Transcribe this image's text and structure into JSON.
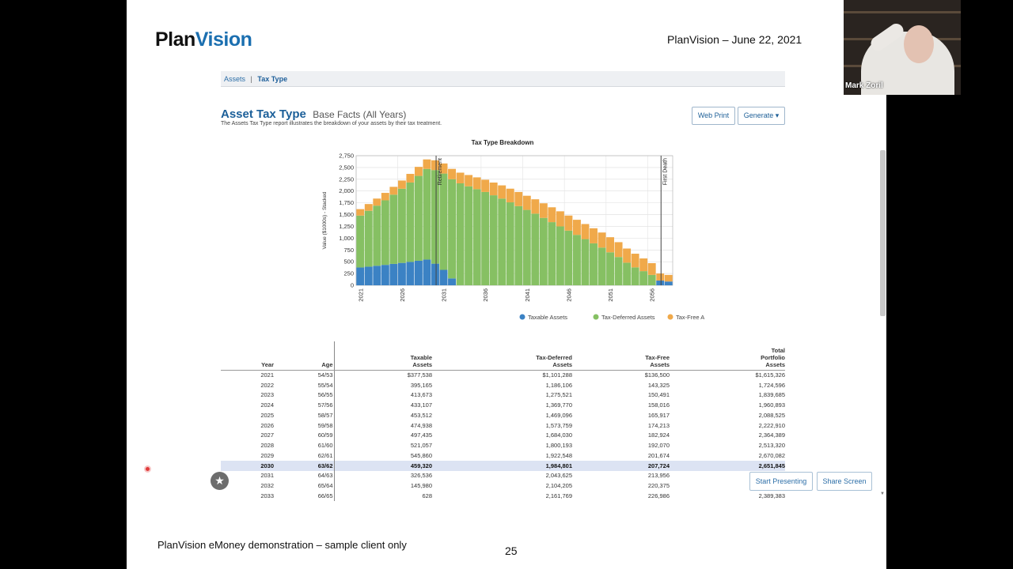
{
  "slide": {
    "logo_plan": "Plan",
    "logo_vision": "Vision",
    "header_date": "PlanVision – June 22, 2021",
    "footer_note": "PlanVision eMoney demonstration – sample client only",
    "page_number": "25"
  },
  "breadcrumb": {
    "item1": "Assets",
    "separator": "|",
    "item2": "Tax Type"
  },
  "report": {
    "title": "Asset Tax Type",
    "subtitle": "Base Facts (All Years)",
    "description": "The Assets Tax Type report illustrates the breakdown of your assets by their tax treatment.",
    "web_print_label": "Web Print",
    "generate_label": "Generate ▾"
  },
  "chart_data": {
    "type": "bar",
    "stacked": true,
    "title": "Tax Type Breakdown",
    "ylabel": "Value ($1000s) - Stacked",
    "xlabel": "",
    "ylim": [
      0,
      2750
    ],
    "yticks": [
      0,
      250,
      500,
      750,
      1000,
      1250,
      1500,
      1750,
      2000,
      2250,
      2500,
      2750
    ],
    "yticklabels": [
      "0",
      "250",
      "500",
      "750",
      "1,000",
      "1,250",
      "1,500",
      "1,750",
      "2,000",
      "2,250",
      "2,500",
      "2,750"
    ],
    "xticklabels": [
      "2021",
      "2026",
      "2031",
      "2036",
      "2041",
      "2046",
      "2051",
      "2056"
    ],
    "grid": true,
    "legend_position": "bottom",
    "categories": [
      2021,
      2022,
      2023,
      2024,
      2025,
      2026,
      2027,
      2028,
      2029,
      2030,
      2031,
      2032,
      2033,
      2034,
      2035,
      2036,
      2037,
      2038,
      2039,
      2040,
      2041,
      2042,
      2043,
      2044,
      2045,
      2046,
      2047,
      2048,
      2049,
      2050,
      2051,
      2052,
      2053,
      2054,
      2055,
      2056,
      2057,
      2058
    ],
    "series": [
      {
        "name": "Taxable Assets",
        "color": "#3b82c4",
        "values": [
          378,
          395,
          414,
          433,
          454,
          475,
          497,
          521,
          546,
          459,
          327,
          146,
          1,
          0,
          0,
          0,
          0,
          0,
          0,
          0,
          0,
          0,
          0,
          0,
          0,
          0,
          0,
          0,
          0,
          0,
          0,
          0,
          0,
          0,
          0,
          0,
          100,
          80
        ]
      },
      {
        "name": "Tax-Deferred Assets",
        "color": "#86c063",
        "values": [
          1101,
          1186,
          1276,
          1370,
          1469,
          1574,
          1684,
          1800,
          1923,
          1985,
          2044,
          2104,
          2162,
          2100,
          2040,
          1980,
          1910,
          1840,
          1760,
          1680,
          1600,
          1520,
          1430,
          1340,
          1250,
          1160,
          1070,
          980,
          890,
          800,
          700,
          600,
          480,
          380,
          300,
          220,
          0,
          0
        ]
      },
      {
        "name": "Tax-Free Assets",
        "color": "#f0a94a",
        "values": [
          137,
          143,
          150,
          158,
          166,
          174,
          183,
          192,
          202,
          208,
          214,
          220,
          227,
          240,
          250,
          260,
          270,
          280,
          290,
          300,
          300,
          305,
          310,
          315,
          320,
          320,
          320,
          320,
          320,
          320,
          320,
          315,
          300,
          290,
          270,
          250,
          150,
          140
        ]
      }
    ],
    "annotations": [
      {
        "label": "Retirement",
        "x": 2030
      },
      {
        "label": "First Death",
        "x": 2057
      }
    ]
  },
  "table": {
    "headers": {
      "year": "Year",
      "age": "Age",
      "taxable": [
        "Taxable",
        "Assets"
      ],
      "deferred": [
        "Tax-Deferred",
        "Assets"
      ],
      "free": [
        "Tax-Free",
        "Assets"
      ],
      "total": [
        "Total",
        "Portfolio",
        "Assets"
      ]
    },
    "rows": [
      [
        "2021",
        "54/53",
        "$377,538",
        "$1,101,288",
        "$136,500",
        "$1,615,326"
      ],
      [
        "2022",
        "55/54",
        "395,165",
        "1,186,106",
        "143,325",
        "1,724,596"
      ],
      [
        "2023",
        "56/55",
        "413,673",
        "1,275,521",
        "150,491",
        "1,839,685"
      ],
      [
        "2024",
        "57/56",
        "433,107",
        "1,369,770",
        "158,016",
        "1,960,893"
      ],
      [
        "2025",
        "58/57",
        "453,512",
        "1,469,096",
        "165,917",
        "2,088,525"
      ],
      [
        "2026",
        "59/58",
        "474,938",
        "1,573,759",
        "174,213",
        "2,222,910"
      ],
      [
        "2027",
        "60/59",
        "497,435",
        "1,684,030",
        "182,924",
        "2,364,389"
      ],
      [
        "2028",
        "61/60",
        "521,057",
        "1,800,193",
        "192,070",
        "2,513,320"
      ],
      [
        "2029",
        "62/61",
        "545,860",
        "1,922,548",
        "201,674",
        "2,670,082"
      ],
      [
        "2030",
        "63/62",
        "459,320",
        "1,984,801",
        "207,724",
        "2,651,845"
      ],
      [
        "2031",
        "64/63",
        "326,536",
        "2,043,625",
        "213,956",
        ""
      ],
      [
        "2032",
        "65/64",
        "145,980",
        "2,104,205",
        "220,375",
        ""
      ],
      [
        "2033",
        "66/65",
        "628",
        "2,161,769",
        "226,986",
        "2,389,383"
      ]
    ],
    "highlight_row": 9
  },
  "presenter": {
    "start_presenting": "Start Presenting",
    "share_screen": "Share Screen"
  },
  "video": {
    "participant_name": "Mark Zoril"
  }
}
